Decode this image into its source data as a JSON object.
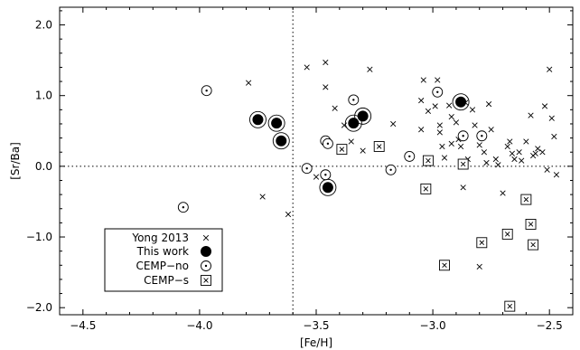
{
  "chart_data": {
    "type": "scatter",
    "xlabel": "[Fe/H]",
    "ylabel": "[Sr/Ba]",
    "xlim": [
      -4.6,
      -2.4
    ],
    "ylim": [
      -2.1,
      2.25
    ],
    "xticks": [
      -4.5,
      -4.0,
      -3.5,
      -3.0,
      -2.5
    ],
    "xtick_labels": [
      "−4.5",
      "−4.0",
      "−3.5",
      "−3.0",
      "−2.5"
    ],
    "yticks": [
      -2.0,
      -1.0,
      0.0,
      1.0,
      2.0
    ],
    "ytick_labels": [
      "−2.0",
      "−1.0",
      "0.0",
      "1.0",
      "2.0"
    ],
    "reference_lines": {
      "x": -3.6,
      "y": 0.0
    },
    "grid": false,
    "legend_position": "bottom-left",
    "series": [
      {
        "name": "Yong 2013",
        "marker": "x",
        "points": [
          [
            -3.79,
            1.18
          ],
          [
            -3.73,
            -0.43
          ],
          [
            -3.62,
            -0.68
          ],
          [
            -3.54,
            1.4
          ],
          [
            -3.46,
            1.47
          ],
          [
            -3.46,
            1.12
          ],
          [
            -3.42,
            0.82
          ],
          [
            -3.38,
            0.58
          ],
          [
            -3.35,
            0.35
          ],
          [
            -3.3,
            0.22
          ],
          [
            -3.27,
            1.37
          ],
          [
            -3.22,
            0.28
          ],
          [
            -3.17,
            0.6
          ],
          [
            -3.05,
            0.93
          ],
          [
            -3.05,
            0.52
          ],
          [
            -3.04,
            1.22
          ],
          [
            -3.02,
            0.78
          ],
          [
            -2.98,
            1.22
          ],
          [
            -2.97,
            0.58
          ],
          [
            -2.96,
            0.28
          ],
          [
            -2.95,
            0.12
          ],
          [
            -2.93,
            0.86
          ],
          [
            -2.92,
            0.7
          ],
          [
            -2.9,
            0.62
          ],
          [
            -2.89,
            0.38
          ],
          [
            -2.88,
            0.28
          ],
          [
            -2.87,
            -0.3
          ],
          [
            -2.86,
            0.9
          ],
          [
            -2.85,
            0.1
          ],
          [
            -2.83,
            0.8
          ],
          [
            -2.82,
            0.58
          ],
          [
            -2.8,
            0.3
          ],
          [
            -2.78,
            0.2
          ],
          [
            -2.77,
            0.05
          ],
          [
            -2.76,
            0.88
          ],
          [
            -2.75,
            0.52
          ],
          [
            -2.73,
            0.1
          ],
          [
            -2.72,
            0.02
          ],
          [
            -2.7,
            -0.38
          ],
          [
            -2.68,
            0.28
          ],
          [
            -2.67,
            0.35
          ],
          [
            -2.66,
            0.18
          ],
          [
            -2.65,
            0.1
          ],
          [
            -2.63,
            0.2
          ],
          [
            -2.62,
            0.08
          ],
          [
            -2.6,
            0.35
          ],
          [
            -2.58,
            0.72
          ],
          [
            -2.57,
            0.15
          ],
          [
            -2.56,
            0.18
          ],
          [
            -2.55,
            0.25
          ],
          [
            -2.53,
            0.2
          ],
          [
            -2.52,
            0.85
          ],
          [
            -2.51,
            -0.05
          ],
          [
            -2.5,
            1.37
          ],
          [
            -2.49,
            0.68
          ],
          [
            -2.48,
            0.42
          ],
          [
            -2.47,
            -0.12
          ],
          [
            -2.8,
            -1.42
          ],
          [
            -3.5,
            -0.15
          ],
          [
            -2.99,
            0.85
          ],
          [
            -2.97,
            0.48
          ],
          [
            -2.92,
            0.32
          ]
        ]
      },
      {
        "name": "This work",
        "marker": "filled-circle",
        "points": [
          [
            -3.75,
            0.66
          ],
          [
            -3.67,
            0.61
          ],
          [
            -3.65,
            0.36
          ],
          [
            -3.34,
            0.61
          ],
          [
            -3.3,
            0.71
          ],
          [
            -3.45,
            -0.3
          ],
          [
            -2.88,
            0.91
          ]
        ]
      },
      {
        "name": "CEMP−no",
        "marker": "circle-dot",
        "points": [
          [
            -3.97,
            1.07
          ],
          [
            -4.07,
            -0.58
          ],
          [
            -3.54,
            -0.03
          ],
          [
            -3.46,
            -0.12
          ],
          [
            -3.46,
            0.36
          ],
          [
            -3.45,
            0.32
          ],
          [
            -3.34,
            0.94
          ],
          [
            -3.18,
            -0.05
          ],
          [
            -3.1,
            0.14
          ],
          [
            -2.98,
            1.05
          ],
          [
            -2.87,
            0.43
          ],
          [
            -2.79,
            0.43
          ]
        ]
      },
      {
        "name": "CEMP−s",
        "marker": "square-x",
        "points": [
          [
            -3.39,
            0.24
          ],
          [
            -3.23,
            0.28
          ],
          [
            -3.03,
            -0.32
          ],
          [
            -3.02,
            0.08
          ],
          [
            -2.95,
            -1.4
          ],
          [
            -2.87,
            0.03
          ],
          [
            -2.79,
            -1.08
          ],
          [
            -2.68,
            -0.96
          ],
          [
            -2.67,
            -1.98
          ],
          [
            -2.6,
            -0.47
          ],
          [
            -2.58,
            -0.82
          ],
          [
            -2.57,
            -1.11
          ]
        ]
      }
    ]
  }
}
